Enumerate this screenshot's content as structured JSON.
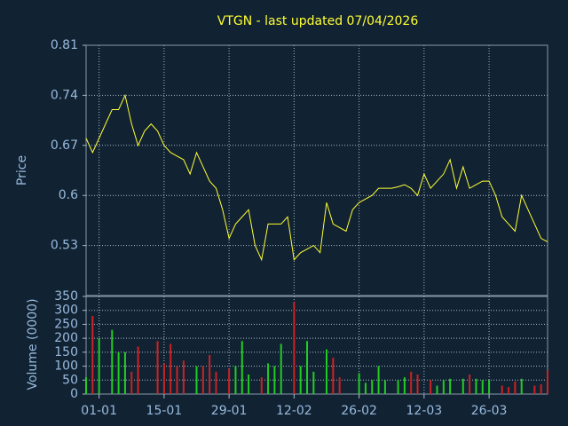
{
  "chart_data": [
    {
      "type": "line",
      "title": "VTGN - last updated 07/04/2026",
      "ylabel": "Price",
      "color": "#ffff33",
      "values": [
        0.68,
        0.66,
        0.68,
        0.7,
        0.72,
        0.72,
        0.74,
        0.7,
        0.67,
        0.69,
        0.7,
        0.69,
        0.67,
        0.66,
        0.655,
        0.65,
        0.63,
        0.66,
        0.64,
        0.62,
        0.61,
        0.58,
        0.54,
        0.56,
        0.57,
        0.58,
        0.53,
        0.51,
        0.56,
        0.56,
        0.56,
        0.57,
        0.51,
        0.52,
        0.525,
        0.53,
        0.52,
        0.59,
        0.56,
        0.555,
        0.55,
        0.58,
        0.59,
        0.595,
        0.6,
        0.61,
        0.61,
        0.61,
        0.612,
        0.615,
        0.61,
        0.6,
        0.63,
        0.61,
        0.62,
        0.63,
        0.65,
        0.61,
        0.64,
        0.61,
        0.615,
        0.62,
        0.62,
        0.6,
        0.57,
        0.56,
        0.55,
        0.6,
        0.58,
        0.56,
        0.54,
        0.535
      ],
      "ylim": [
        0.46,
        0.81
      ],
      "yticks": [
        0.53,
        0.6,
        0.67,
        0.74,
        0.81
      ],
      "grid": true
    },
    {
      "type": "bar",
      "ylabel": "Volume (0000)",
      "up_color": "#22cc22",
      "down_color": "#cc2222",
      "categories": [
        null,
        null,
        "01-01",
        null,
        null,
        null,
        null,
        null,
        null,
        null,
        null,
        null,
        "15-01",
        null,
        null,
        null,
        null,
        null,
        null,
        null,
        null,
        null,
        "29-01",
        null,
        null,
        null,
        null,
        null,
        null,
        null,
        null,
        null,
        "12-02",
        null,
        null,
        null,
        null,
        null,
        null,
        null,
        null,
        null,
        "26-02",
        null,
        null,
        null,
        null,
        null,
        null,
        null,
        null,
        null,
        "12-03",
        null,
        null,
        null,
        null,
        null,
        null,
        null,
        null,
        null,
        "26-03",
        null,
        null,
        null,
        null,
        null,
        null,
        null,
        null,
        null
      ],
      "values": [
        60,
        280,
        200,
        0,
        230,
        150,
        150,
        80,
        170,
        0,
        0,
        190,
        110,
        180,
        100,
        120,
        0,
        100,
        100,
        140,
        80,
        0,
        90,
        100,
        190,
        70,
        0,
        60,
        110,
        100,
        180,
        0,
        330,
        100,
        190,
        80,
        0,
        160,
        130,
        60,
        0,
        0,
        75,
        40,
        50,
        100,
        50,
        0,
        50,
        60,
        80,
        70,
        0,
        50,
        30,
        50,
        55,
        0,
        55,
        70,
        55,
        50,
        50,
        0,
        30,
        25,
        45,
        55,
        0,
        30,
        35,
        85
      ],
      "ylim": [
        0,
        350
      ],
      "yticks": [
        0,
        50,
        100,
        150,
        200,
        250,
        300,
        350
      ],
      "grid": true
    }
  ]
}
